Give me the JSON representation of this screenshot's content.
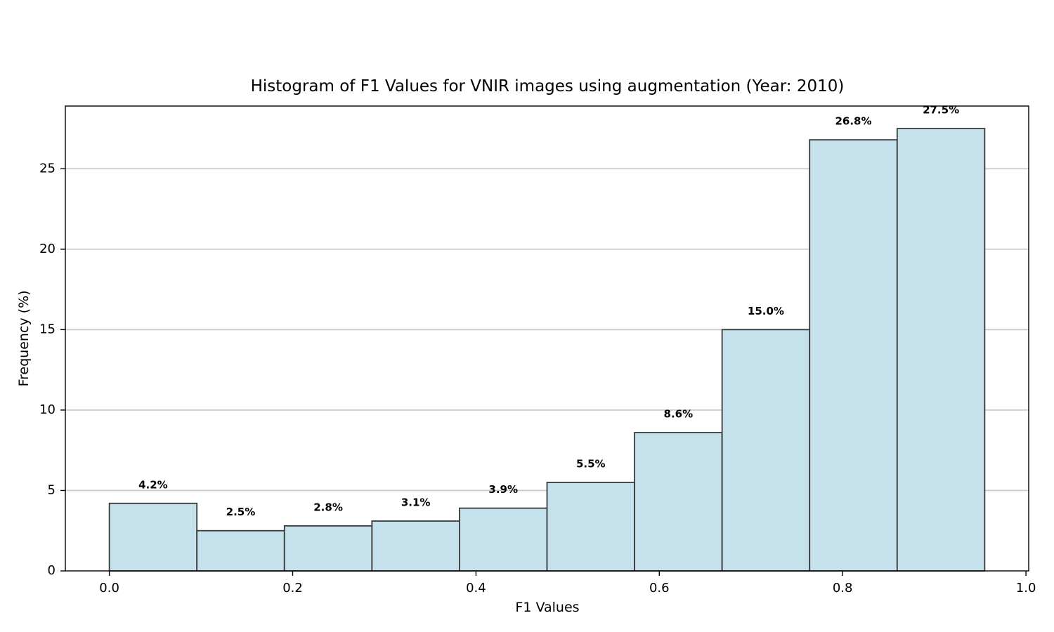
{
  "chart_data": {
    "type": "bar",
    "title": "Histogram of F1 Values for VNIR images using augmentation (Year: 2010)",
    "xlabel": "F1 Values",
    "ylabel": "Frequency (%)",
    "bin_edges": [
      0.0,
      0.0955,
      0.191,
      0.2865,
      0.382,
      0.4775,
      0.573,
      0.6685,
      0.764,
      0.8595,
      0.955
    ],
    "values": [
      4.2,
      2.5,
      2.8,
      3.1,
      3.9,
      5.5,
      8.6,
      15.0,
      26.8,
      27.5
    ],
    "labels": [
      "4.2%",
      "2.5%",
      "2.8%",
      "3.1%",
      "3.9%",
      "5.5%",
      "8.6%",
      "15.0%",
      "26.8%",
      "27.5%"
    ],
    "xlim": [
      -0.048,
      1.003
    ],
    "ylim": [
      0,
      28.9
    ],
    "xticks": [
      0.0,
      0.2,
      0.4,
      0.6,
      0.8,
      1.0
    ],
    "xtick_labels": [
      "0.0",
      "0.2",
      "0.4",
      "0.6",
      "0.8",
      "1.0"
    ],
    "yticks": [
      0,
      5,
      10,
      15,
      20,
      25
    ],
    "ytick_labels": [
      "0",
      "5",
      "10",
      "15",
      "20",
      "25"
    ],
    "grid": "y",
    "bar_color": "#c5e2ec",
    "edge_color": "#3a3a3a"
  }
}
